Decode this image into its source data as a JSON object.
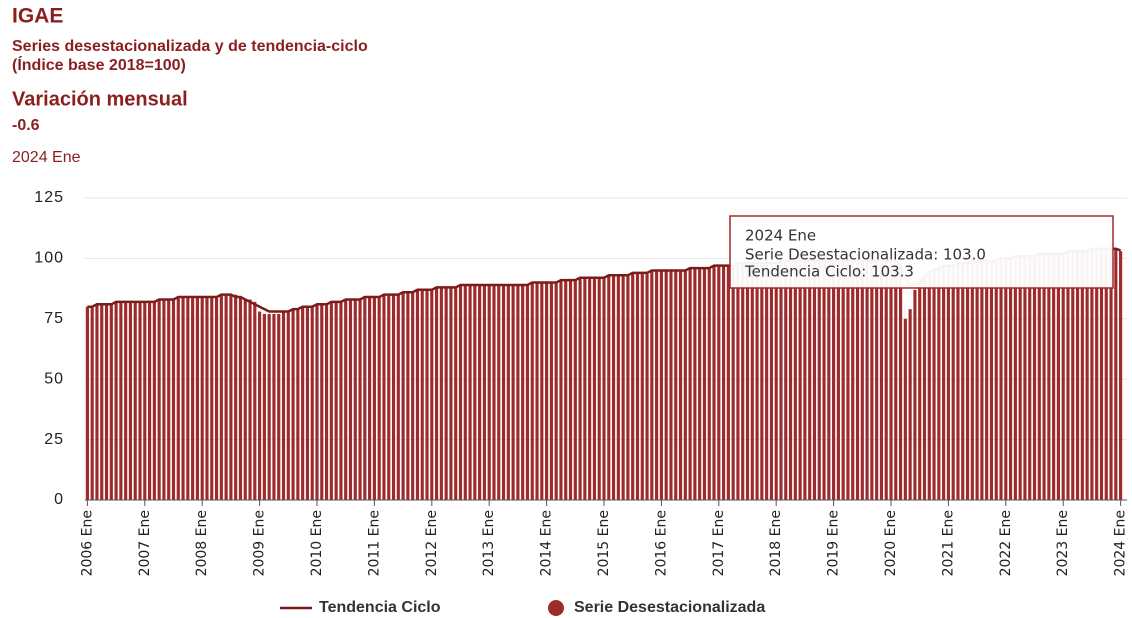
{
  "chart_data": {
    "type": "bar",
    "title": "IGAE",
    "subtitle": [
      "Series desestacionalizada y de tendencia-ciclo",
      "(Índice base 2018=100)"
    ],
    "kpi": {
      "label": "Variación mensual",
      "value": -0.6,
      "date": "2024 Ene"
    },
    "tooltip": {
      "title": "2024 Ene",
      "lines": [
        "Serie Desestacionalizada: 103.0",
        "Tendencia Ciclo: 103.3"
      ]
    },
    "categories": [
      "2006 Ene",
      null,
      null,
      null,
      null,
      null,
      null,
      null,
      null,
      null,
      null,
      null,
      "2007 Ene",
      null,
      null,
      null,
      null,
      null,
      null,
      null,
      null,
      null,
      null,
      null,
      "2008 Ene",
      null,
      null,
      null,
      null,
      null,
      null,
      null,
      null,
      null,
      null,
      null,
      "2009 Ene",
      null,
      null,
      null,
      null,
      null,
      null,
      null,
      null,
      null,
      null,
      null,
      "2010 Ene",
      null,
      null,
      null,
      null,
      null,
      null,
      null,
      null,
      null,
      null,
      null,
      "2011 Ene",
      null,
      null,
      null,
      null,
      null,
      null,
      null,
      null,
      null,
      null,
      null,
      "2012 Ene",
      null,
      null,
      null,
      null,
      null,
      null,
      null,
      null,
      null,
      null,
      null,
      "2013 Ene",
      null,
      null,
      null,
      null,
      null,
      null,
      null,
      null,
      null,
      null,
      null,
      "2014 Ene",
      null,
      null,
      null,
      null,
      null,
      null,
      null,
      null,
      null,
      null,
      null,
      "2015 Ene",
      null,
      null,
      null,
      null,
      null,
      null,
      null,
      null,
      null,
      null,
      null,
      "2016 Ene",
      null,
      null,
      null,
      null,
      null,
      null,
      null,
      null,
      null,
      null,
      null,
      "2017 Ene",
      null,
      null,
      null,
      null,
      null,
      null,
      null,
      null,
      null,
      null,
      null,
      "2018 Ene",
      null,
      null,
      null,
      null,
      null,
      null,
      null,
      null,
      null,
      null,
      null,
      "2019 Ene",
      null,
      null,
      null,
      null,
      null,
      null,
      null,
      null,
      null,
      null,
      null,
      "2020 Ene",
      null,
      null,
      null,
      null,
      null,
      null,
      null,
      null,
      null,
      null,
      null,
      "2021 Ene",
      null,
      null,
      null,
      null,
      null,
      null,
      null,
      null,
      null,
      null,
      null,
      "2022 Ene",
      null,
      null,
      null,
      null,
      null,
      null,
      null,
      null,
      null,
      null,
      null,
      "2023 Ene",
      null,
      null,
      null,
      null,
      null,
      null,
      null,
      null,
      null,
      null,
      null,
      "2024 Ene"
    ],
    "series": [
      {
        "name": "Serie Desestacionalizada",
        "color": "#9e2b2b",
        "kind": "bar",
        "values": [
          80,
          80,
          81,
          81,
          81,
          81,
          82,
          82,
          82,
          82,
          82,
          82,
          82,
          82,
          82,
          83,
          83,
          83,
          83,
          84,
          84,
          84,
          84,
          84,
          84,
          84,
          84,
          84,
          85,
          85,
          85,
          85,
          84,
          83,
          83,
          82,
          78,
          77,
          77,
          77,
          77,
          78,
          78,
          79,
          79,
          80,
          80,
          80,
          81,
          81,
          81,
          82,
          82,
          82,
          83,
          83,
          83,
          83,
          84,
          84,
          84,
          84,
          85,
          85,
          85,
          85,
          86,
          86,
          86,
          87,
          87,
          87,
          87,
          88,
          88,
          88,
          88,
          88,
          89,
          89,
          89,
          89,
          89,
          89,
          89,
          89,
          89,
          89,
          89,
          89,
          89,
          89,
          89,
          90,
          90,
          90,
          90,
          90,
          90,
          91,
          91,
          91,
          91,
          92,
          92,
          92,
          92,
          92,
          92,
          93,
          93,
          93,
          93,
          93,
          94,
          94,
          94,
          94,
          95,
          95,
          95,
          95,
          95,
          95,
          95,
          95,
          96,
          96,
          96,
          96,
          96,
          97,
          97,
          97,
          97,
          97,
          98,
          98,
          98,
          98,
          98,
          98,
          98,
          98,
          98,
          99,
          99,
          99,
          99,
          99,
          99,
          99,
          99,
          99,
          99,
          99,
          99,
          99,
          99,
          99,
          99,
          99,
          99,
          99,
          99,
          99,
          99,
          99,
          99,
          99,
          98,
          75,
          79,
          87,
          90,
          92,
          95,
          96,
          96,
          97,
          97,
          97,
          98,
          98,
          98,
          99,
          99,
          99,
          99,
          99,
          99,
          100,
          100,
          100,
          101,
          101,
          101,
          101,
          101,
          102,
          102,
          102,
          102,
          102,
          102,
          103,
          103,
          103,
          103,
          103,
          104,
          104,
          104,
          104,
          104,
          104,
          103.0
        ]
      },
      {
        "name": "Tendencia Ciclo",
        "color": "#7b1c1c",
        "kind": "line",
        "values": [
          80,
          80,
          81,
          81,
          81,
          81,
          82,
          82,
          82,
          82,
          82,
          82,
          82,
          82,
          82,
          83,
          83,
          83,
          83,
          84,
          84,
          84,
          84,
          84,
          84,
          84,
          84,
          84,
          85,
          85,
          85,
          84,
          84,
          83,
          82,
          81,
          80,
          79,
          78,
          78,
          78,
          78,
          78,
          79,
          79,
          80,
          80,
          80,
          81,
          81,
          81,
          82,
          82,
          82,
          83,
          83,
          83,
          83,
          84,
          84,
          84,
          84,
          85,
          85,
          85,
          85,
          86,
          86,
          86,
          87,
          87,
          87,
          87,
          88,
          88,
          88,
          88,
          88,
          89,
          89,
          89,
          89,
          89,
          89,
          89,
          89,
          89,
          89,
          89,
          89,
          89,
          89,
          89,
          90,
          90,
          90,
          90,
          90,
          90,
          91,
          91,
          91,
          91,
          92,
          92,
          92,
          92,
          92,
          92,
          93,
          93,
          93,
          93,
          93,
          94,
          94,
          94,
          94,
          95,
          95,
          95,
          95,
          95,
          95,
          95,
          95,
          96,
          96,
          96,
          96,
          96,
          97,
          97,
          97,
          97,
          97,
          98,
          98,
          98,
          98,
          98,
          98,
          98,
          98,
          98,
          99,
          99,
          99,
          99,
          99,
          99,
          99,
          99,
          99,
          99,
          99,
          99,
          99,
          99,
          99,
          99,
          99,
          99,
          99,
          99,
          99,
          99,
          99,
          99,
          99,
          97,
          92,
          89,
          89,
          90,
          92,
          94,
          95,
          96,
          97,
          97,
          97,
          98,
          98,
          98,
          99,
          99,
          99,
          99,
          99,
          99,
          100,
          100,
          100,
          101,
          101,
          101,
          101,
          101,
          102,
          102,
          102,
          102,
          102,
          102,
          103,
          103,
          103,
          103,
          103,
          104,
          104,
          104,
          104,
          104,
          104,
          103.3
        ]
      }
    ],
    "ylim": [
      0,
      125
    ],
    "yticks": [
      0,
      25,
      50,
      75,
      100,
      125
    ],
    "grid": true
  }
}
